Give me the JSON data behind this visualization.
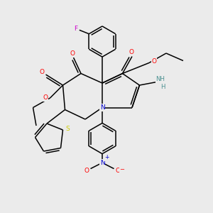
{
  "bg_color": "#ebebeb",
  "atom_colors": {
    "C": "#000000",
    "N": "#0000cd",
    "O": "#ff0000",
    "F": "#cc00cc",
    "S": "#cccc00",
    "H": "#4a9090"
  },
  "bond_color": "#000000",
  "lw": 1.1
}
